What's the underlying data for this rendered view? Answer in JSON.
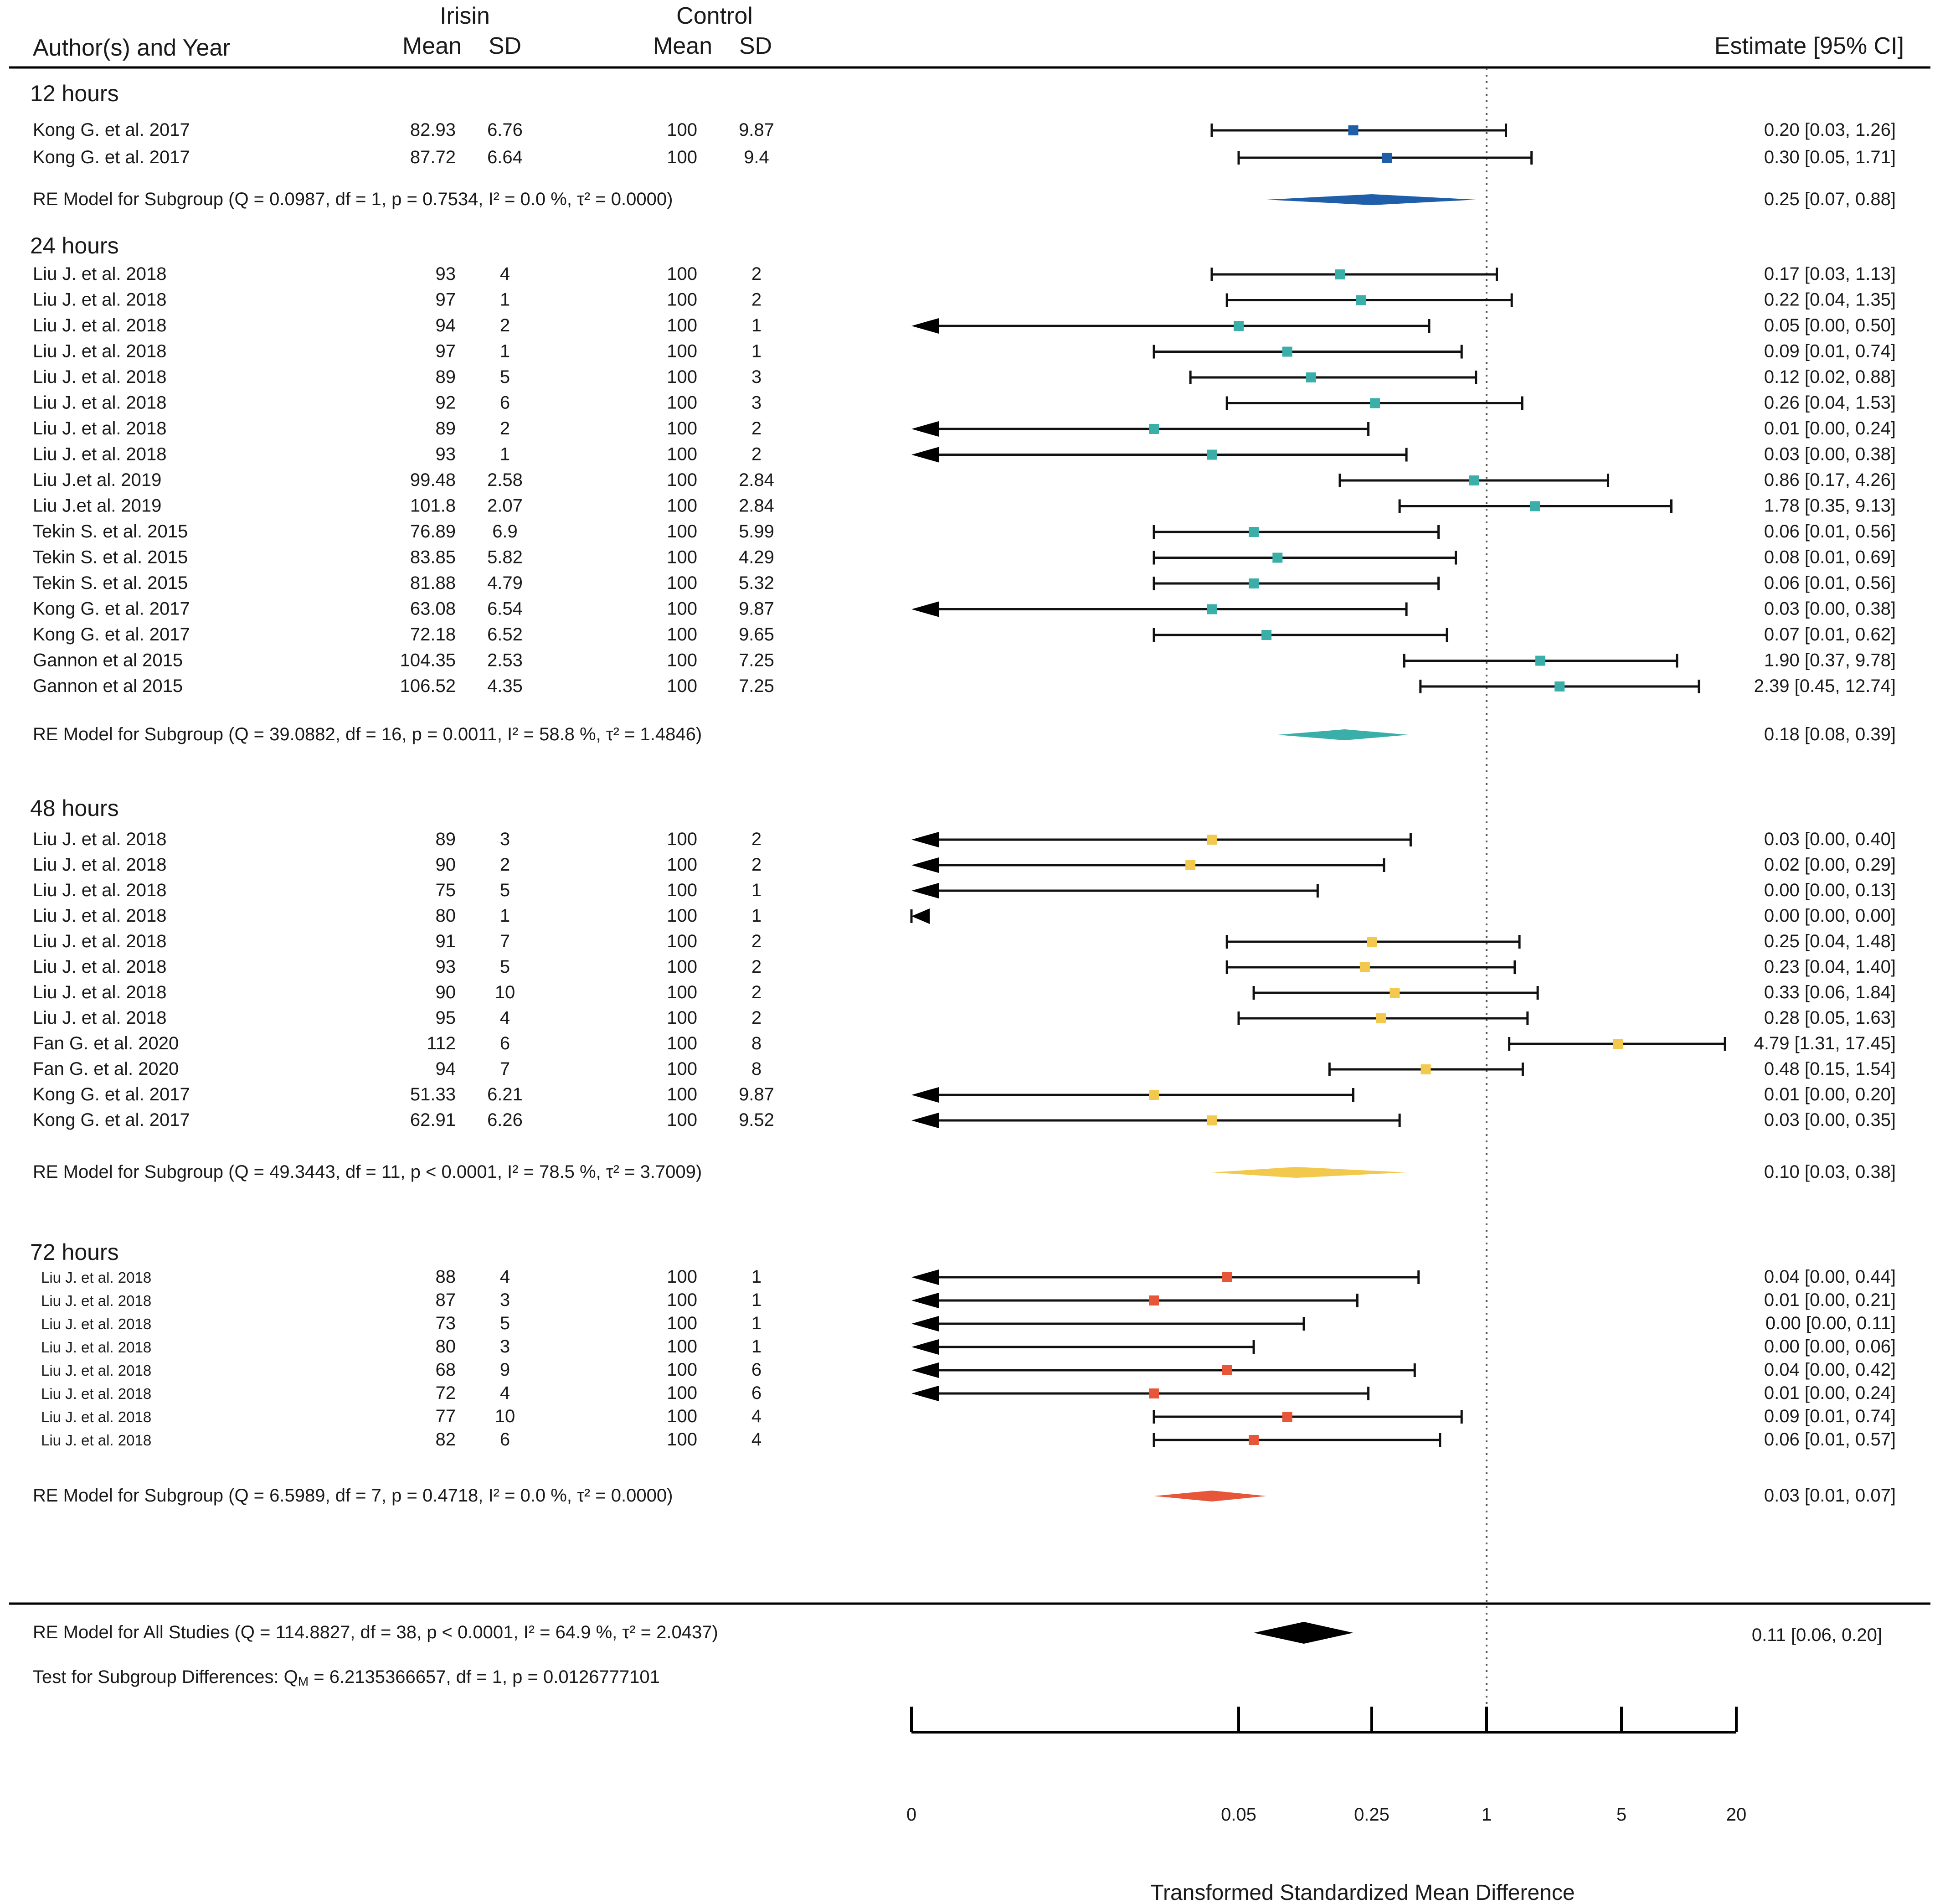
{
  "chart_data": {
    "type": "forest",
    "headers": {
      "author": "Author(s) and Year",
      "irisin": "Irisin",
      "control": "Control",
      "mean": "Mean",
      "sd": "SD",
      "estimate": "Estimate [95% CI]"
    },
    "colors": {
      "12h": "#1f5ea8",
      "24h": "#3aafa9",
      "48h": "#f2c94c",
      "72h": "#e8563a",
      "overall": "#000000"
    },
    "axis": {
      "tick_values": [
        0,
        0.05,
        0.25,
        1,
        5,
        20
      ],
      "tick_labels": [
        "0",
        "0.05",
        "0.25",
        "1",
        "5",
        "20"
      ],
      "reference_value": 1,
      "xlabel": "Transformed Standardized Mean Difference"
    },
    "subgroups": [
      {
        "key": "12h",
        "title": "12 hours",
        "studies": [
          {
            "author": "Kong G. et al. 2017",
            "im": "82.93",
            "isd": "6.76",
            "cm": "100",
            "csd": "9.87",
            "est": 0.2,
            "lo": 0.03,
            "hi": 1.26,
            "label": "0.20 [0.03, 1.26]"
          },
          {
            "author": "Kong G. et al. 2017",
            "im": "87.72",
            "isd": "6.64",
            "cm": "100",
            "csd": "9.4",
            "est": 0.3,
            "lo": 0.05,
            "hi": 1.71,
            "label": "0.30 [0.05, 1.71]"
          }
        ],
        "model": {
          "text": "RE Model for Subgroup (Q = 0.0987, df = 1, p = 0.7534, I² = 0.0 %, τ² = 0.0000)",
          "est": 0.25,
          "lo": 0.07,
          "hi": 0.88,
          "label": "0.25 [0.07, 0.88]"
        }
      },
      {
        "key": "24h",
        "title": "24 hours",
        "studies": [
          {
            "author": "Liu J. et al. 2018",
            "im": "93",
            "isd": "4",
            "cm": "100",
            "csd": "2",
            "est": 0.17,
            "lo": 0.03,
            "hi": 1.13,
            "label": "0.17 [0.03, 1.13]"
          },
          {
            "author": "Liu J. et al. 2018",
            "im": "97",
            "isd": "1",
            "cm": "100",
            "csd": "2",
            "est": 0.22,
            "lo": 0.04,
            "hi": 1.35,
            "label": "0.22 [0.04, 1.35]"
          },
          {
            "author": "Liu J. et al. 2018",
            "im": "94",
            "isd": "2",
            "cm": "100",
            "csd": "1",
            "est": 0.05,
            "lo": 0.0,
            "hi": 0.5,
            "label": "0.05 [0.00, 0.50]"
          },
          {
            "author": "Liu J. et al. 2018",
            "im": "97",
            "isd": "1",
            "cm": "100",
            "csd": "1",
            "est": 0.09,
            "lo": 0.01,
            "hi": 0.74,
            "label": "0.09 [0.01, 0.74]"
          },
          {
            "author": "Liu J. et al. 2018",
            "im": "89",
            "isd": "5",
            "cm": "100",
            "csd": "3",
            "est": 0.12,
            "lo": 0.02,
            "hi": 0.88,
            "label": "0.12 [0.02, 0.88]"
          },
          {
            "author": "Liu J. et al. 2018",
            "im": "92",
            "isd": "6",
            "cm": "100",
            "csd": "3",
            "est": 0.26,
            "lo": 0.04,
            "hi": 1.53,
            "label": "0.26 [0.04, 1.53]"
          },
          {
            "author": "Liu J. et al. 2018",
            "im": "89",
            "isd": "2",
            "cm": "100",
            "csd": "2",
            "est": 0.01,
            "lo": 0.0,
            "hi": 0.24,
            "label": "0.01 [0.00, 0.24]"
          },
          {
            "author": "Liu J. et al. 2018",
            "im": "93",
            "isd": "1",
            "cm": "100",
            "csd": "2",
            "est": 0.03,
            "lo": 0.0,
            "hi": 0.38,
            "label": "0.03 [0.00, 0.38]"
          },
          {
            "author": "Liu J.et al. 2019",
            "im": "99.48",
            "isd": "2.58",
            "cm": "100",
            "csd": "2.84",
            "est": 0.86,
            "lo": 0.17,
            "hi": 4.26,
            "label": "0.86 [0.17, 4.26]"
          },
          {
            "author": "Liu J.et al. 2019",
            "im": "101.8",
            "isd": "2.07",
            "cm": "100",
            "csd": "2.84",
            "est": 1.78,
            "lo": 0.35,
            "hi": 9.13,
            "label": "1.78 [0.35, 9.13]"
          },
          {
            "author": "Tekin S. et al. 2015",
            "im": "76.89",
            "isd": "6.9",
            "cm": "100",
            "csd": "5.99",
            "est": 0.06,
            "lo": 0.01,
            "hi": 0.56,
            "label": "0.06 [0.01, 0.56]"
          },
          {
            "author": "Tekin S. et al. 2015",
            "im": "83.85",
            "isd": "5.82",
            "cm": "100",
            "csd": "4.29",
            "est": 0.08,
            "lo": 0.01,
            "hi": 0.69,
            "label": "0.08 [0.01, 0.69]"
          },
          {
            "author": "Tekin S. et al. 2015",
            "im": "81.88",
            "isd": "4.79",
            "cm": "100",
            "csd": "5.32",
            "est": 0.06,
            "lo": 0.01,
            "hi": 0.56,
            "label": "0.06 [0.01, 0.56]"
          },
          {
            "author": "Kong G. et al. 2017",
            "im": "63.08",
            "isd": "6.54",
            "cm": "100",
            "csd": "9.87",
            "est": 0.03,
            "lo": 0.0,
            "hi": 0.38,
            "label": "0.03 [0.00, 0.38]"
          },
          {
            "author": "Kong G. et al. 2017",
            "im": "72.18",
            "isd": "6.52",
            "cm": "100",
            "csd": "9.65",
            "est": 0.07,
            "lo": 0.01,
            "hi": 0.62,
            "label": "0.07 [0.01, 0.62]"
          },
          {
            "author": "Gannon et al 2015",
            "im": "104.35",
            "isd": "2.53",
            "cm": "100",
            "csd": "7.25",
            "est": 1.9,
            "lo": 0.37,
            "hi": 9.78,
            "label": "1.90 [0.37, 9.78]"
          },
          {
            "author": "Gannon et al 2015",
            "im": "106.52",
            "isd": "4.35",
            "cm": "100",
            "csd": "7.25",
            "est": 2.39,
            "lo": 0.45,
            "hi": 12.74,
            "label": "2.39 [0.45, 12.74]"
          }
        ],
        "model": {
          "text": "RE Model for Subgroup (Q = 39.0882, df = 16, p = 0.0011, I² = 58.8 %,   τ² = 1.4846)",
          "est": 0.18,
          "lo": 0.08,
          "hi": 0.39,
          "label": "0.18 [0.08, 0.39]"
        }
      },
      {
        "key": "48h",
        "title": "48 hours",
        "studies": [
          {
            "author": "Liu J. et al. 2018",
            "im": "89",
            "isd": "3",
            "cm": "100",
            "csd": "2",
            "est": 0.03,
            "lo": 0.0,
            "hi": 0.4,
            "label": "0.03 [0.00, 0.40]"
          },
          {
            "author": "Liu J. et al. 2018",
            "im": "90",
            "isd": "2",
            "cm": "100",
            "csd": "2",
            "est": 0.02,
            "lo": 0.0,
            "hi": 0.29,
            "label": "0.02 [0.00, 0.29]"
          },
          {
            "author": "Liu J. et al. 2018",
            "im": "75",
            "isd": "5",
            "cm": "100",
            "csd": "1",
            "est": 0.0,
            "lo": 0.0,
            "hi": 0.13,
            "label": "0.00 [0.00, 0.13]"
          },
          {
            "author": "Liu J. et al. 2018",
            "im": "80",
            "isd": "1",
            "cm": "100",
            "csd": "1",
            "est": 0.0,
            "lo": 0.0,
            "hi": 0.0,
            "label": "0.00 [0.00, 0.00]"
          },
          {
            "author": "Liu J. et al. 2018",
            "im": "91",
            "isd": "7",
            "cm": "100",
            "csd": "2",
            "est": 0.25,
            "lo": 0.04,
            "hi": 1.48,
            "label": "0.25 [0.04, 1.48]"
          },
          {
            "author": "Liu J. et al. 2018",
            "im": "93",
            "isd": "5",
            "cm": "100",
            "csd": "2",
            "est": 0.23,
            "lo": 0.04,
            "hi": 1.4,
            "label": "0.23 [0.04, 1.40]"
          },
          {
            "author": "Liu J. et al. 2018",
            "im": "90",
            "isd": "10",
            "cm": "100",
            "csd": "2",
            "est": 0.33,
            "lo": 0.06,
            "hi": 1.84,
            "label": "0.33 [0.06, 1.84]"
          },
          {
            "author": "Liu J. et al. 2018",
            "im": "95",
            "isd": "4",
            "cm": "100",
            "csd": "2",
            "est": 0.28,
            "lo": 0.05,
            "hi": 1.63,
            "label": "0.28 [0.05, 1.63]"
          },
          {
            "author": "Fan G. et al. 2020",
            "im": "112",
            "isd": "6",
            "cm": "100",
            "csd": "8",
            "est": 4.79,
            "lo": 1.31,
            "hi": 17.45,
            "label": "4.79 [1.31, 17.45]"
          },
          {
            "author": "Fan G. et al. 2020",
            "im": "94",
            "isd": "7",
            "cm": "100",
            "csd": "8",
            "est": 0.48,
            "lo": 0.15,
            "hi": 1.54,
            "label": "0.48 [0.15, 1.54]"
          },
          {
            "author": "Kong G. et al. 2017",
            "im": "51.33",
            "isd": "6.21",
            "cm": "100",
            "csd": "9.87",
            "est": 0.01,
            "lo": 0.0,
            "hi": 0.2,
            "label": "0.01 [0.00, 0.20]"
          },
          {
            "author": "Kong G. et al. 2017",
            "im": "62.91",
            "isd": "6.26",
            "cm": "100",
            "csd": "9.52",
            "est": 0.03,
            "lo": 0.0,
            "hi": 0.35,
            "label": "0.03 [0.00, 0.35]"
          }
        ],
        "model": {
          "text": "RE Model for Subgroup (Q = 49.3443, df = 11, p < 0.0001, I² = 78.5 %,   τ² = 3.7009)",
          "est": 0.1,
          "lo": 0.03,
          "hi": 0.38,
          "label": "0.10 [0.03, 0.38]"
        }
      },
      {
        "key": "72h",
        "title": "72 hours",
        "small_labels": true,
        "studies": [
          {
            "author": "Liu J. et al. 2018",
            "im": "88",
            "isd": "4",
            "cm": "100",
            "csd": "1",
            "est": 0.04,
            "lo": 0.0,
            "hi": 0.44,
            "label": "0.04 [0.00, 0.44]"
          },
          {
            "author": "Liu J. et al. 2018",
            "im": "87",
            "isd": "3",
            "cm": "100",
            "csd": "1",
            "est": 0.01,
            "lo": 0.0,
            "hi": 0.21,
            "label": "0.01 [0.00, 0.21]"
          },
          {
            "author": "Liu J. et al. 2018",
            "im": "73",
            "isd": "5",
            "cm": "100",
            "csd": "1",
            "est": 0.0,
            "lo": 0.0,
            "hi": 0.11,
            "label": "0.00 [0.00, 0.11]"
          },
          {
            "author": "Liu J. et al. 2018",
            "im": "80",
            "isd": "3",
            "cm": "100",
            "csd": "1",
            "est": 0.0,
            "lo": 0.0,
            "hi": 0.06,
            "label": "0.00 [0.00, 0.06]"
          },
          {
            "author": "Liu J. et al. 2018",
            "im": "68",
            "isd": "9",
            "cm": "100",
            "csd": "6",
            "est": 0.04,
            "lo": 0.0,
            "hi": 0.42,
            "label": "0.04 [0.00, 0.42]"
          },
          {
            "author": "Liu J. et al. 2018",
            "im": "72",
            "isd": "4",
            "cm": "100",
            "csd": "6",
            "est": 0.01,
            "lo": 0.0,
            "hi": 0.24,
            "label": "0.01 [0.00, 0.24]"
          },
          {
            "author": "Liu J. et al. 2018",
            "im": "77",
            "isd": "10",
            "cm": "100",
            "csd": "4",
            "est": 0.09,
            "lo": 0.01,
            "hi": 0.74,
            "label": "0.09 [0.01, 0.74]"
          },
          {
            "author": "Liu J. et al. 2018",
            "im": "82",
            "isd": "6",
            "cm": "100",
            "csd": "4",
            "est": 0.06,
            "lo": 0.01,
            "hi": 0.57,
            "label": "0.06 [0.01, 0.57]"
          }
        ],
        "model": {
          "text": "RE Model for Subgroup (Q = 6.5989, df = 7, p = 0.4718, I² = 0.0 %,   τ² = 0.0000)",
          "est": 0.03,
          "lo": 0.01,
          "hi": 0.07,
          "label": "0.03 [0.01, 0.07]"
        }
      }
    ],
    "overall": {
      "text": "RE Model for All Studies (Q = 114.8827, df = 38, p < 0.0001, I² = 64.9 %, τ² = 2.0437)",
      "est": 0.11,
      "lo": 0.06,
      "hi": 0.2,
      "label": "0.11 [0.06, 0.20]"
    },
    "subgroup_test": {
      "text_before": "Test for Subgroup Differences: Q",
      "subscript": "M",
      "text_after": " = 6.2135366657, df = 1, p = 0.0126777101"
    }
  }
}
